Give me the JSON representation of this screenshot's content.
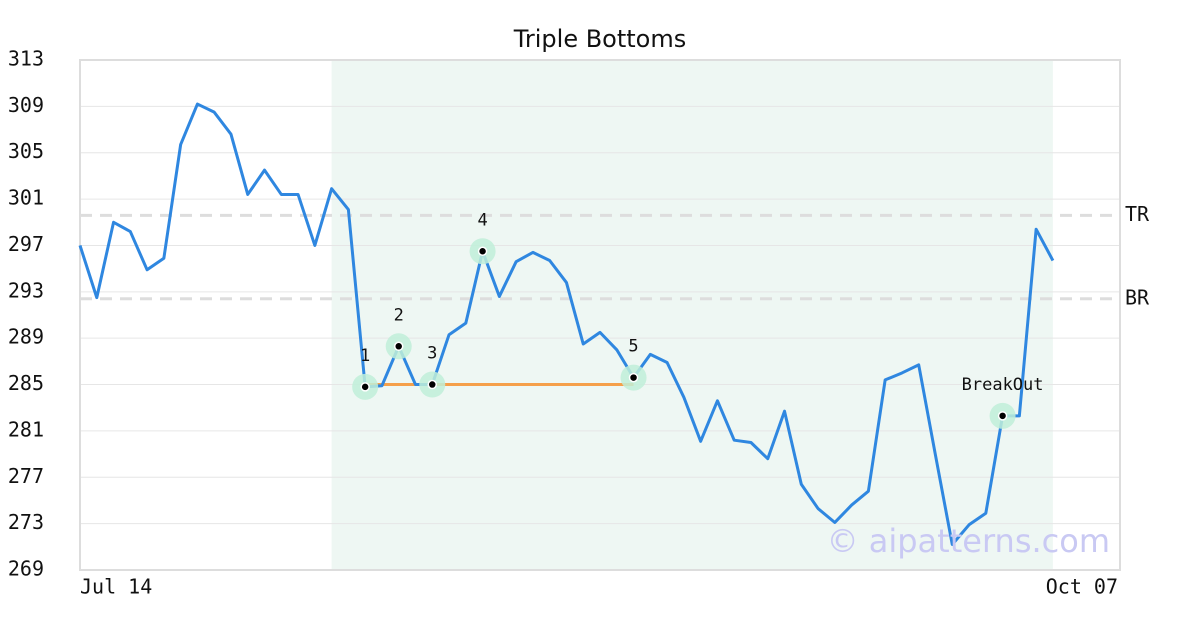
{
  "chart_data": {
    "type": "line",
    "title": "Triple Bottoms",
    "categories": [
      "Jul 14",
      null,
      null,
      null,
      null,
      null,
      null,
      null,
      null,
      null,
      null,
      null,
      null,
      null,
      null,
      null,
      null,
      null,
      null,
      null,
      null,
      null,
      null,
      null,
      null,
      null,
      null,
      null,
      null,
      null,
      null,
      null,
      null,
      null,
      null,
      null,
      null,
      null,
      null,
      null,
      null,
      null,
      null,
      null,
      null,
      null,
      null,
      null,
      null,
      null,
      null,
      null,
      null,
      null,
      null,
      null,
      null,
      null,
      "Oct 07"
    ],
    "series": [
      {
        "color": "#2f87e0",
        "values": [
          297.0,
          292.5,
          299.0,
          298.2,
          294.9,
          295.9,
          305.7,
          309.2,
          308.5,
          306.6,
          301.4,
          303.5,
          301.4,
          301.4,
          297.0,
          301.9,
          300.1,
          284.8,
          284.9,
          288.3,
          285.0,
          285.0,
          289.3,
          290.3,
          296.5,
          292.6,
          295.6,
          296.4,
          295.7,
          293.8,
          288.5,
          289.5,
          288.0,
          285.6,
          287.6,
          286.9,
          283.9,
          280.1,
          283.6,
          280.2,
          280.0,
          278.6,
          282.7,
          276.4,
          274.3,
          273.1,
          274.6,
          275.8,
          285.4,
          286.0,
          286.7,
          278.9,
          271.2,
          272.9,
          273.9,
          282.3,
          282.3,
          298.4,
          295.7
        ]
      }
    ],
    "ylim": [
      269,
      313
    ],
    "yticks": [
      269,
      273,
      277,
      281,
      285,
      289,
      293,
      297,
      301,
      305,
      309,
      313
    ],
    "grid": true,
    "pattern_range": [
      15,
      58
    ],
    "pattern_color": "#eef7f3",
    "support": {
      "from": 17,
      "to": 33,
      "value": 285.0,
      "color": "#f5a04a"
    },
    "levels": [
      {
        "label": "TR",
        "value": 299.6
      },
      {
        "label": "BR",
        "value": 292.4
      }
    ],
    "points": [
      {
        "label": "1",
        "index": 17,
        "value": 284.8
      },
      {
        "label": "2",
        "index": 19,
        "value": 288.3
      },
      {
        "label": "3",
        "index": 21,
        "value": 285.0
      },
      {
        "label": "4",
        "index": 24,
        "value": 296.5
      },
      {
        "label": "5",
        "index": 33,
        "value": 285.6
      },
      {
        "label": "BreakOut",
        "index": 55,
        "value": 282.3
      }
    ],
    "watermark": "© aipatterns.com"
  }
}
